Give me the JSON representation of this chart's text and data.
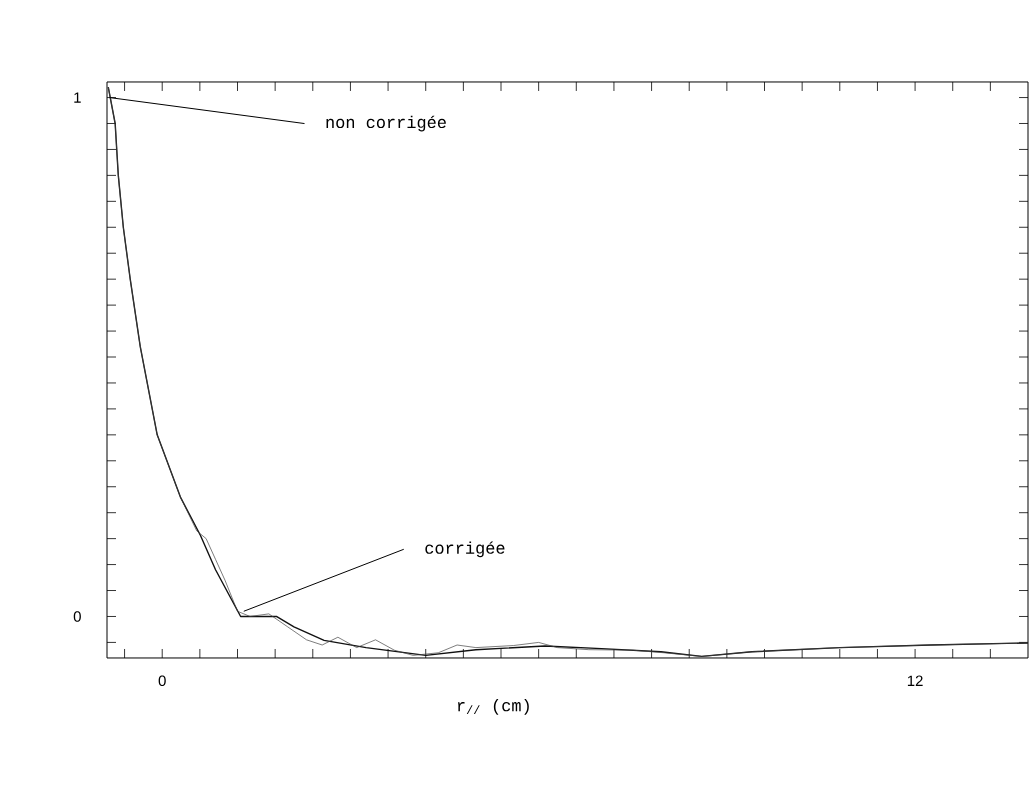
{
  "chart_data": {
    "type": "line",
    "xlabel": "r$_{//}$ (cm)",
    "xlim": [
      -0.88,
      13.8
    ],
    "ylim": [
      -0.08,
      1.03
    ],
    "xticks": [
      {
        "value": -0.6,
        "label": null
      },
      0,
      {
        "value": 0.6,
        "label": null
      },
      {
        "value": 1.2,
        "label": null
      },
      {
        "value": 1.8,
        "label": null
      },
      {
        "value": 2.4,
        "label": null
      },
      {
        "value": 3.0,
        "label": null
      },
      {
        "value": 3.6,
        "label": null
      },
      {
        "value": 4.2,
        "label": null
      },
      {
        "value": 4.8,
        "label": null
      },
      {
        "value": 5.4,
        "label": null
      },
      {
        "value": 6.0,
        "label": null
      },
      {
        "value": 6.6,
        "label": null
      },
      {
        "value": 7.2,
        "label": null
      },
      {
        "value": 7.8,
        "label": null
      },
      {
        "value": 8.4,
        "label": null
      },
      {
        "value": 9.0,
        "label": null
      },
      {
        "value": 9.6,
        "label": null
      },
      {
        "value": 10.2,
        "label": null
      },
      {
        "value": 10.8,
        "label": null
      },
      {
        "value": 11.4,
        "label": null
      },
      12,
      {
        "value": 12.6,
        "label": null
      },
      {
        "value": 13.2,
        "label": null
      }
    ],
    "yticks": [
      {
        "value": -0.05,
        "label": null
      },
      0,
      {
        "value": 0.05,
        "label": null
      },
      {
        "value": 0.1,
        "label": null
      },
      {
        "value": 0.15,
        "label": null
      },
      {
        "value": 0.2,
        "label": null
      },
      {
        "value": 0.25,
        "label": null
      },
      {
        "value": 0.3,
        "label": null
      },
      {
        "value": 0.35,
        "label": null
      },
      {
        "value": 0.4,
        "label": null
      },
      {
        "value": 0.45,
        "label": null
      },
      {
        "value": 0.5,
        "label": null
      },
      {
        "value": 0.55,
        "label": null
      },
      {
        "value": 0.6,
        "label": null
      },
      {
        "value": 0.65,
        "label": null
      },
      {
        "value": 0.7,
        "label": null
      },
      {
        "value": 0.75,
        "label": null
      },
      {
        "value": 0.8,
        "label": null
      },
      {
        "value": 0.85,
        "label": null
      },
      {
        "value": 0.9,
        "label": null
      },
      {
        "value": 0.95,
        "label": null
      },
      1
    ],
    "series": [
      {
        "color": "#444444",
        "x": [
          -0.86,
          -0.75,
          -0.7,
          -0.62,
          -0.51,
          -0.35,
          -0.08,
          0.29,
          0.55,
          0.7,
          0.85,
          1.0,
          1.2,
          1.4,
          1.7,
          2.0,
          2.3,
          2.55,
          2.8,
          3.1,
          3.4,
          3.7,
          4.0,
          4.4,
          4.7,
          5.0,
          5.6,
          6.0,
          6.3,
          6.8,
          7.5,
          8.0,
          8.6,
          9.4,
          10.8,
          12.25,
          13.8
        ],
        "values": [
          1.02,
          0.95,
          0.85,
          0.75,
          0.65,
          0.52,
          0.35,
          0.23,
          0.165,
          0.15,
          0.11,
          0.07,
          0.01,
          0.0,
          0.005,
          -0.02,
          -0.045,
          -0.055,
          -0.04,
          -0.06,
          -0.045,
          -0.065,
          -0.075,
          -0.07,
          -0.055,
          -0.06,
          -0.056,
          -0.05,
          -0.06,
          -0.064,
          -0.065,
          -0.07,
          -0.077,
          -0.068,
          -0.06,
          -0.055,
          -0.051
        ]
      },
      {
        "color": "#111111",
        "x": [
          -0.86,
          -0.75,
          -0.7,
          -0.62,
          -0.51,
          -0.35,
          -0.08,
          0.29,
          0.61,
          0.85,
          1.25,
          1.82,
          2.1,
          2.58,
          3.25,
          4.2,
          5.0,
          6.1,
          7.0,
          7.95,
          8.6,
          9.4,
          10.8,
          12.25,
          13.8
        ],
        "values": [
          1.02,
          0.95,
          0.85,
          0.75,
          0.65,
          0.52,
          0.35,
          0.23,
          0.156,
          0.09,
          0.0,
          0.0,
          -0.02,
          -0.046,
          -0.06,
          -0.075,
          -0.064,
          -0.057,
          -0.062,
          -0.068,
          -0.077,
          -0.068,
          -0.06,
          -0.055,
          -0.051
        ]
      }
    ],
    "annotations": [
      {
        "text": "non corrigée",
        "x": -0.84,
        "y": 1.0
      },
      {
        "text": "corrigée",
        "x": 1.3,
        "y": 0.01
      }
    ]
  }
}
